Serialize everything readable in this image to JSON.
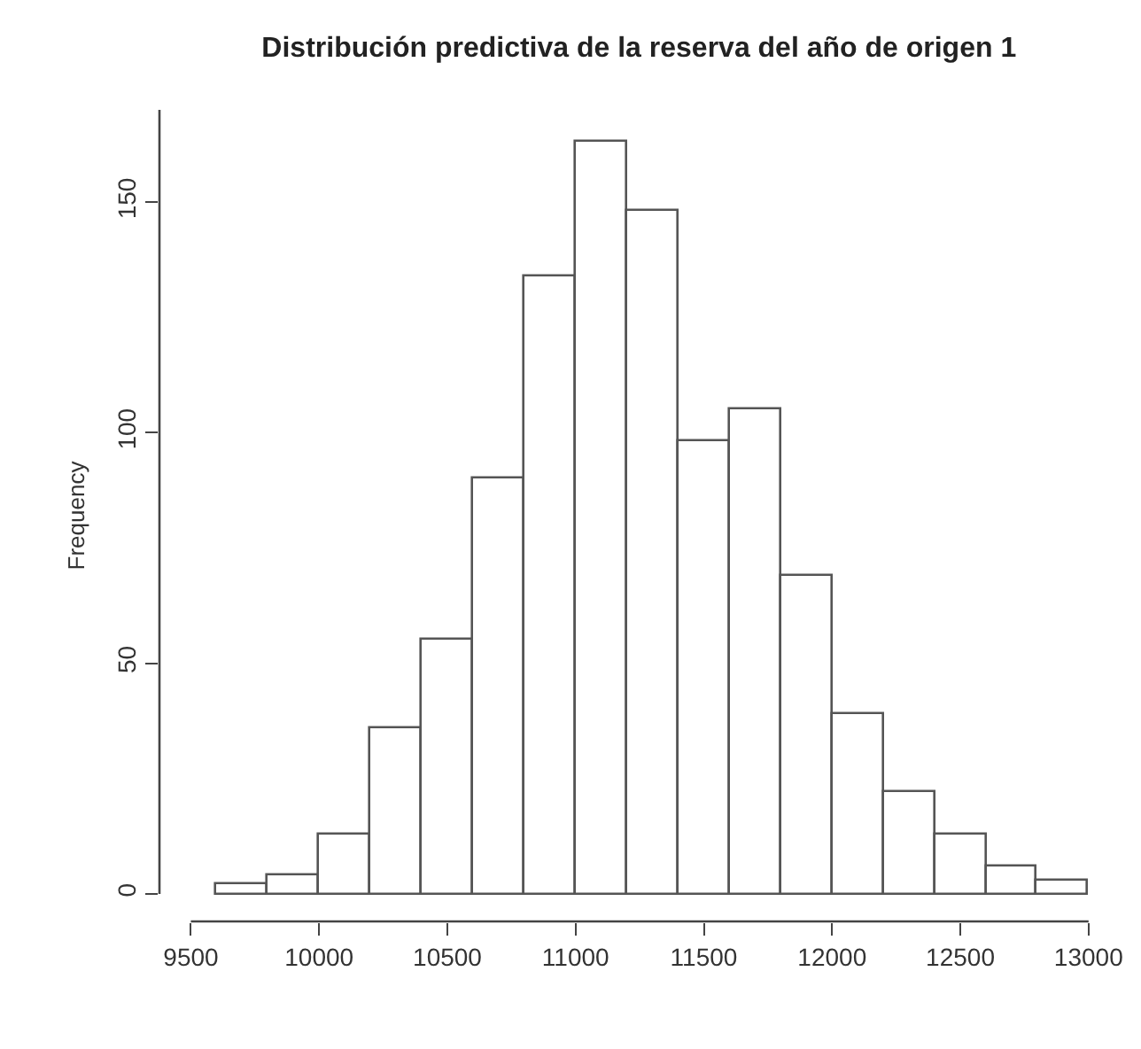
{
  "chart_data": {
    "type": "histogram",
    "title": "Distribución predictiva de la reserva del año de origen 1",
    "ylabel": "Frequency",
    "bins": [
      9600,
      9800,
      10000,
      10200,
      10400,
      10600,
      10800,
      11000,
      11200,
      11400,
      11600,
      11800,
      12000,
      12200,
      12400,
      12600,
      12800,
      13000
    ],
    "values": [
      2,
      4,
      13,
      36,
      55,
      90,
      134,
      163,
      148,
      98,
      105,
      69,
      39,
      22,
      13,
      6,
      3
    ],
    "color": "#ffffff",
    "xlim": [
      9500,
      13000
    ],
    "xticks": [
      9500,
      10000,
      10500,
      11000,
      11500,
      12000,
      12500,
      13000
    ],
    "ylim": [
      0,
      170
    ],
    "yticks": [
      0,
      50,
      100,
      150
    ],
    "grid": false
  }
}
